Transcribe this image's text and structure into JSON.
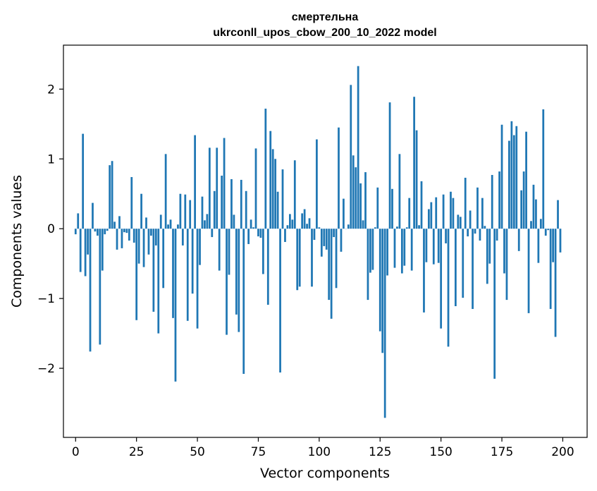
{
  "chart_data": {
    "type": "bar",
    "title_lines": [
      "смертельна",
      "ukrconll_upos_cbow_200_10_2022 model"
    ],
    "xlabel": "Vector components",
    "ylabel": "Components values",
    "xlim": [
      -5,
      210
    ],
    "ylim": [
      -2.99,
      2.63
    ],
    "xticks": [
      0,
      25,
      50,
      75,
      100,
      125,
      150,
      175,
      200
    ],
    "yticks": [
      -2,
      -1,
      0,
      1,
      2
    ],
    "ytick_labels": [
      "−2",
      "−1",
      "0",
      "1",
      "2"
    ],
    "bar_color": "#1f77b4",
    "grid": false,
    "values": [
      -0.08,
      0.22,
      -0.62,
      1.36,
      -0.68,
      -0.37,
      -1.76,
      0.37,
      -0.04,
      -0.1,
      -1.66,
      -0.6,
      -0.08,
      -0.03,
      0.91,
      0.97,
      0.1,
      -0.3,
      0.18,
      -0.28,
      -0.05,
      -0.06,
      -0.17,
      0.74,
      -0.2,
      -1.31,
      -0.5,
      0.5,
      -0.55,
      0.16,
      -0.37,
      -0.1,
      -1.19,
      -0.24,
      -1.5,
      0.2,
      -0.85,
      1.07,
      0.06,
      0.13,
      -1.28,
      -2.19,
      0.06,
      0.5,
      -0.24,
      0.49,
      -1.32,
      0.41,
      -0.93,
      1.34,
      -1.43,
      -0.52,
      0.46,
      0.12,
      0.21,
      1.16,
      -0.12,
      0.54,
      1.16,
      -0.6,
      0.76,
      1.3,
      -1.52,
      -0.66,
      0.71,
      0.2,
      -1.23,
      -1.48,
      0.7,
      -2.08,
      0.54,
      -0.22,
      0.13,
      0.02,
      1.15,
      -0.11,
      -0.13,
      -0.65,
      1.72,
      -1.09,
      1.4,
      1.14,
      1.0,
      0.53,
      -2.06,
      0.85,
      -0.19,
      0.05,
      0.21,
      0.13,
      0.98,
      -0.88,
      -0.83,
      0.22,
      0.28,
      0.07,
      0.15,
      -0.83,
      -0.16,
      1.28,
      0.02,
      -0.4,
      -0.25,
      -0.3,
      -1.02,
      -1.29,
      -0.12,
      -0.85,
      1.45,
      -0.33,
      0.43,
      0.0,
      0.06,
      2.06,
      1.05,
      0.88,
      2.33,
      0.65,
      0.12,
      0.81,
      -1.02,
      -0.63,
      -0.59,
      0.02,
      0.59,
      -1.47,
      -1.78,
      -2.71,
      -0.67,
      1.81,
      0.57,
      -0.56,
      0.03,
      1.07,
      -0.64,
      -0.53,
      0.02,
      0.44,
      -0.6,
      1.89,
      1.41,
      0.05,
      0.68,
      -1.2,
      -0.48,
      0.28,
      0.38,
      -0.51,
      0.45,
      -0.49,
      -1.43,
      0.49,
      -0.21,
      -1.69,
      0.53,
      0.44,
      -1.11,
      0.2,
      0.17,
      -0.99,
      0.73,
      -0.11,
      0.26,
      -1.15,
      -0.07,
      0.59,
      -0.17,
      0.44,
      0.04,
      -0.79,
      -0.5,
      0.77,
      -2.15,
      -0.17,
      0.82,
      1.49,
      -0.64,
      -1.02,
      1.26,
      1.54,
      1.34,
      1.47,
      -0.32,
      0.55,
      0.82,
      1.39,
      -1.21,
      0.11,
      0.63,
      0.42,
      -0.49,
      0.14,
      1.71,
      -0.1,
      -0.02,
      -1.15,
      -0.48,
      -1.55,
      0.41,
      -0.34
    ]
  }
}
